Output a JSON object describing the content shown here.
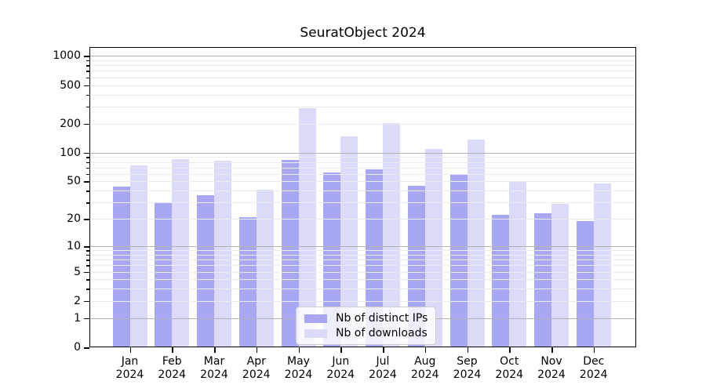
{
  "chart_data": {
    "type": "bar",
    "title": "SeuratObject 2024",
    "categories": [
      "Jan 2024",
      "Feb 2024",
      "Mar 2024",
      "Apr 2024",
      "May 2024",
      "Jun 2024",
      "Jul 2024",
      "Aug 2024",
      "Sep 2024",
      "Oct 2024",
      "Nov 2024",
      "Dec 2024"
    ],
    "series": [
      {
        "name": "Nb of distinct IPs",
        "color": "#a8a8f2",
        "values": [
          44,
          30,
          36,
          21,
          84,
          62,
          67,
          45,
          60,
          22,
          23,
          19
        ]
      },
      {
        "name": "Nb of downloads",
        "color": "#dbdbf9",
        "values": [
          74,
          86,
          82,
          41,
          290,
          147,
          202,
          110,
          137,
          50,
          29,
          48
        ]
      }
    ],
    "xlabel": "",
    "ylabel": "",
    "yscale": "log1p",
    "yticks": [
      0,
      1,
      2,
      5,
      10,
      20,
      50,
      100,
      200,
      500,
      1000
    ],
    "major_grid_values": [
      1,
      10,
      100,
      1000
    ],
    "minor_grid_multipliers": [
      3,
      4,
      6,
      7,
      8,
      9
    ],
    "ylim": [
      0,
      1230
    ],
    "grid": true,
    "legend_position": "lower center"
  },
  "colors": {
    "grid_minor": "#ebebeb",
    "grid_major": "#b3b3b3",
    "axis": "#000000",
    "legend_border": "#cccccc",
    "background": "#ffffff"
  }
}
